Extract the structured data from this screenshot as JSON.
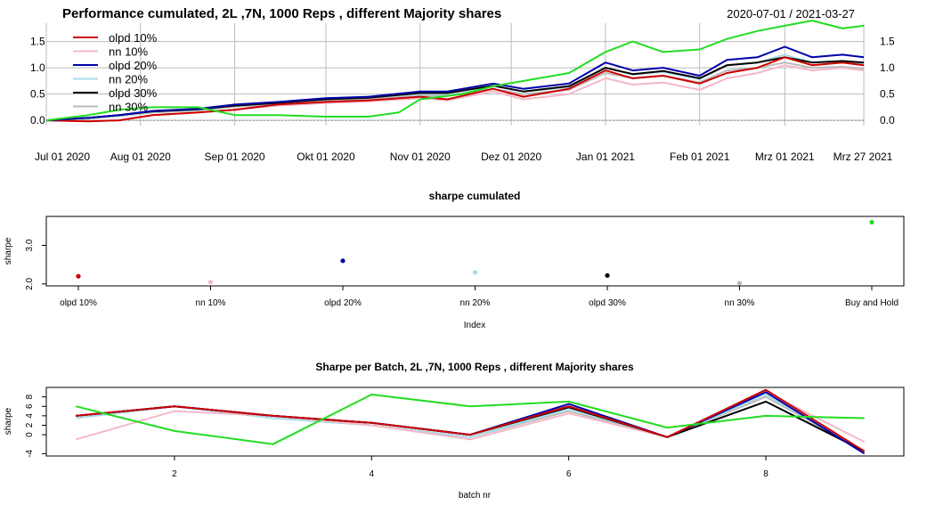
{
  "chart_data": [
    {
      "type": "line",
      "title": "Performance cumulated,  2L ,7N,  1000  Reps , different Majority shares",
      "date_range": "2020-07-01 / 2021-03-27",
      "x_start": "2020-07-01",
      "x_end": "2021-03-27",
      "x_ticks": [
        {
          "date": "2020-07-01",
          "label": "Jul 01 2020"
        },
        {
          "date": "2020-08-01",
          "label": "Aug 01 2020"
        },
        {
          "date": "2020-09-01",
          "label": "Sep 01 2020"
        },
        {
          "date": "2020-10-01",
          "label": "Okt 01 2020"
        },
        {
          "date": "2020-11-01",
          "label": "Nov 01 2020"
        },
        {
          "date": "2020-12-01",
          "label": "Dez 01 2020"
        },
        {
          "date": "2021-01-01",
          "label": "Jan 01 2021"
        },
        {
          "date": "2021-02-01",
          "label": "Feb 01 2021"
        },
        {
          "date": "2021-03-01",
          "label": "Mrz 01 2021"
        },
        {
          "date": "2021-03-27",
          "label": "Mrz 27 2021"
        }
      ],
      "y_ticks": [
        "0.0",
        "0.5",
        "1.0",
        "1.5"
      ],
      "ylim": [
        -0.1,
        1.85
      ],
      "grid": true,
      "legend_position": "top-left",
      "series": [
        {
          "name": "olpd 10%",
          "color": "#cc0000",
          "x": [
            "2020-07-01",
            "2020-07-15",
            "2020-07-25",
            "2020-08-05",
            "2020-08-20",
            "2020-09-01",
            "2020-09-15",
            "2020-10-01",
            "2020-10-15",
            "2020-11-01",
            "2020-11-10",
            "2020-11-25",
            "2020-12-05",
            "2020-12-20",
            "2021-01-01",
            "2021-01-10",
            "2021-01-20",
            "2021-02-01",
            "2021-02-10",
            "2021-02-20",
            "2021-03-01",
            "2021-03-10",
            "2021-03-20",
            "2021-03-27"
          ],
          "values": [
            0.0,
            -0.02,
            0.0,
            0.1,
            0.15,
            0.2,
            0.3,
            0.35,
            0.38,
            0.45,
            0.4,
            0.6,
            0.45,
            0.6,
            0.95,
            0.8,
            0.85,
            0.7,
            0.9,
            1.0,
            1.2,
            1.05,
            1.1,
            1.05
          ]
        },
        {
          "name": "nn 10%",
          "color": "#f4b8c8",
          "x": [
            "2020-07-01",
            "2020-07-15",
            "2020-07-25",
            "2020-08-05",
            "2020-08-20",
            "2020-09-01",
            "2020-09-15",
            "2020-10-01",
            "2020-10-15",
            "2020-11-01",
            "2020-11-10",
            "2020-11-25",
            "2020-12-05",
            "2020-12-20",
            "2021-01-01",
            "2021-01-10",
            "2021-01-20",
            "2021-02-01",
            "2021-02-10",
            "2021-02-20",
            "2021-03-01",
            "2021-03-10",
            "2021-03-20",
            "2021-03-27"
          ],
          "values": [
            0.0,
            -0.02,
            0.0,
            0.1,
            0.15,
            0.2,
            0.28,
            0.33,
            0.36,
            0.42,
            0.38,
            0.55,
            0.4,
            0.5,
            0.8,
            0.68,
            0.72,
            0.58,
            0.8,
            0.9,
            1.05,
            0.95,
            1.0,
            0.95
          ]
        },
        {
          "name": "olpd 20%",
          "color": "#0000aa",
          "x": [
            "2020-07-01",
            "2020-07-15",
            "2020-07-25",
            "2020-08-05",
            "2020-08-20",
            "2020-09-01",
            "2020-09-15",
            "2020-10-01",
            "2020-10-15",
            "2020-11-01",
            "2020-11-10",
            "2020-11-25",
            "2020-12-05",
            "2020-12-20",
            "2021-01-01",
            "2021-01-10",
            "2021-01-20",
            "2021-02-01",
            "2021-02-10",
            "2021-02-20",
            "2021-03-01",
            "2021-03-10",
            "2021-03-20",
            "2021-03-27"
          ],
          "values": [
            0.0,
            0.05,
            0.1,
            0.18,
            0.22,
            0.3,
            0.35,
            0.42,
            0.45,
            0.55,
            0.55,
            0.7,
            0.6,
            0.7,
            1.1,
            0.95,
            1.0,
            0.85,
            1.15,
            1.2,
            1.4,
            1.2,
            1.25,
            1.2
          ]
        },
        {
          "name": "nn 20%",
          "color": "#a8dce8",
          "x": [
            "2020-07-01",
            "2020-07-15",
            "2020-07-25",
            "2020-08-05",
            "2020-08-20",
            "2020-09-01",
            "2020-09-15",
            "2020-10-01",
            "2020-10-15",
            "2020-11-01",
            "2020-11-10",
            "2020-11-25",
            "2020-12-05",
            "2020-12-20",
            "2021-01-01",
            "2021-01-10",
            "2021-01-20",
            "2021-02-01",
            "2021-02-10",
            "2021-02-20",
            "2021-03-01",
            "2021-03-10",
            "2021-03-20",
            "2021-03-27"
          ],
          "values": [
            0.0,
            0.04,
            0.09,
            0.16,
            0.2,
            0.28,
            0.32,
            0.4,
            0.43,
            0.5,
            0.5,
            0.65,
            0.55,
            0.63,
            1.0,
            0.87,
            0.92,
            0.78,
            1.05,
            1.1,
            1.25,
            1.1,
            1.13,
            1.08
          ]
        },
        {
          "name": "olpd 30%",
          "color": "#000000",
          "x": [
            "2020-07-01",
            "2020-07-15",
            "2020-07-25",
            "2020-08-05",
            "2020-08-20",
            "2020-09-01",
            "2020-09-15",
            "2020-10-01",
            "2020-10-15",
            "2020-11-01",
            "2020-11-10",
            "2020-11-25",
            "2020-12-05",
            "2020-12-20",
            "2021-01-01",
            "2021-01-10",
            "2021-01-20",
            "2021-02-01",
            "2021-02-10",
            "2021-02-20",
            "2021-03-01",
            "2021-03-10",
            "2021-03-20",
            "2021-03-27"
          ],
          "values": [
            0.0,
            0.05,
            0.1,
            0.17,
            0.21,
            0.28,
            0.33,
            0.4,
            0.43,
            0.52,
            0.52,
            0.66,
            0.55,
            0.65,
            1.0,
            0.88,
            0.94,
            0.8,
            1.05,
            1.1,
            1.2,
            1.1,
            1.13,
            1.1
          ]
        },
        {
          "name": "nn 30%",
          "color": "#bbbbbb",
          "x": [
            "2020-07-01",
            "2020-07-15",
            "2020-07-25",
            "2020-08-05",
            "2020-08-20",
            "2020-09-01",
            "2020-09-15",
            "2020-10-01",
            "2020-10-15",
            "2020-11-01",
            "2020-11-10",
            "2020-11-25",
            "2020-12-05",
            "2020-12-20",
            "2021-01-01",
            "2021-01-10",
            "2021-01-20",
            "2021-02-01",
            "2021-02-10",
            "2021-02-20",
            "2021-03-01",
            "2021-03-10",
            "2021-03-20",
            "2021-03-27"
          ],
          "values": [
            0.0,
            0.03,
            0.08,
            0.15,
            0.19,
            0.26,
            0.3,
            0.37,
            0.4,
            0.47,
            0.47,
            0.6,
            0.5,
            0.58,
            0.9,
            0.8,
            0.85,
            0.72,
            0.95,
            1.0,
            1.1,
            1.0,
            1.02,
            0.98
          ]
        },
        {
          "name": "",
          "color": "#22dd22",
          "x": [
            "2020-07-01",
            "2020-07-15",
            "2020-07-25",
            "2020-08-05",
            "2020-08-20",
            "2020-09-01",
            "2020-09-15",
            "2020-10-01",
            "2020-10-15",
            "2020-10-25",
            "2020-11-01",
            "2020-11-15",
            "2020-11-25",
            "2020-12-05",
            "2020-12-20",
            "2021-01-01",
            "2021-01-10",
            "2021-01-20",
            "2021-02-01",
            "2021-02-10",
            "2021-02-20",
            "2021-03-01",
            "2021-03-10",
            "2021-03-20",
            "2021-03-27"
          ],
          "values": [
            0.0,
            0.1,
            0.2,
            0.25,
            0.25,
            0.1,
            0.1,
            0.07,
            0.07,
            0.15,
            0.4,
            0.5,
            0.65,
            0.75,
            0.9,
            1.3,
            1.5,
            1.3,
            1.35,
            1.55,
            1.7,
            1.8,
            1.9,
            1.75,
            1.8
          ]
        }
      ]
    },
    {
      "type": "scatter",
      "title": "sharpe cumulated",
      "xlabel": "Index",
      "ylabel": "sharpe",
      "y_ticks": [
        "2.0",
        "3.0"
      ],
      "ylim": [
        1.95,
        3.75
      ],
      "categories": [
        "olpd 10%",
        "nn 10%",
        "olpd 20%",
        "nn 20%",
        "olpd 30%",
        "nn 30%",
        "Buy and Hold"
      ],
      "values": [
        2.2,
        2.05,
        2.6,
        2.3,
        2.22,
        2.02,
        3.6
      ],
      "colors": [
        "#cc0000",
        "#f4b8c8",
        "#0000aa",
        "#a8dce8",
        "#000000",
        "#bbbbbb",
        "#22dd22"
      ]
    },
    {
      "type": "line",
      "title": "Sharpe per Batch,  2L ,7N,  1000  Reps , different Majority shares",
      "xlabel": "batch nr",
      "ylabel": "sharpe",
      "x": [
        1,
        2,
        3,
        4,
        5,
        6,
        7,
        8,
        9
      ],
      "x_ticks": [
        "2",
        "4",
        "6",
        "8"
      ],
      "y_ticks": [
        "-4",
        "0",
        "2",
        "4",
        "6",
        "8"
      ],
      "ylim": [
        -4.5,
        10
      ],
      "xlim": [
        0.7,
        9.4
      ],
      "series": [
        {
          "color": "#cc0000",
          "values": [
            4,
            6,
            4,
            2.5,
            0,
            6,
            -0.5,
            9.5,
            -3.5
          ]
        },
        {
          "color": "#f4b8c8",
          "values": [
            -1,
            5,
            4,
            2,
            -1,
            4.5,
            -0.5,
            9,
            -1.5
          ]
        },
        {
          "color": "#0000aa",
          "values": [
            4,
            6,
            4,
            2.5,
            0,
            6.5,
            -0.5,
            9,
            -4
          ]
        },
        {
          "color": "#a8dce8",
          "values": [
            3.5,
            6,
            3.5,
            2,
            -0.5,
            5.5,
            -0.5,
            8.5,
            -3.5
          ]
        },
        {
          "color": "#000000",
          "values": [
            4,
            6,
            4,
            2.5,
            0,
            5.8,
            -0.5,
            7,
            -3.5
          ]
        },
        {
          "color": "#bbbbbb",
          "values": [
            4,
            6,
            4,
            2,
            -0.5,
            5,
            -0.5,
            8,
            -3.5
          ]
        },
        {
          "color": "#22dd22",
          "values": [
            6,
            0.8,
            -2,
            8.5,
            6,
            7,
            1.5,
            4,
            3.5
          ]
        }
      ]
    }
  ]
}
